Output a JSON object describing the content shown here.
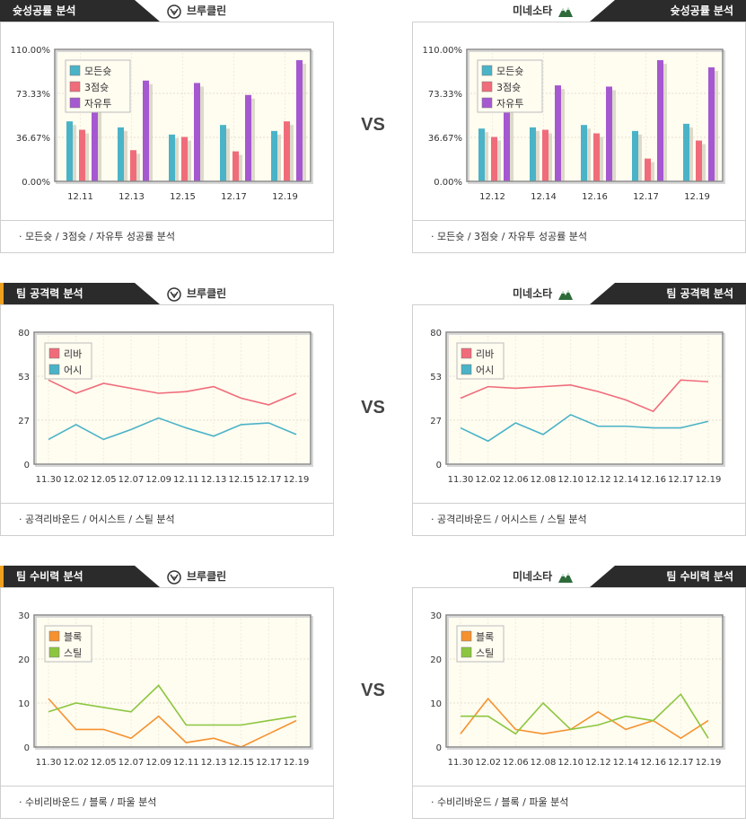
{
  "vs_label": "VS",
  "sections": [
    {
      "title": "슛성공률 분석",
      "left_team": "브루클린",
      "right_team": "미네소타",
      "left_caption": "·  모든슛 / 3점슛 / 자유투 성공률 분석",
      "right_caption": "·  모든슛 / 3점슛 / 자유투 성공률 분석"
    },
    {
      "title": "팀 공격력 분석",
      "left_team": "브루클린",
      "right_team": "미네소타",
      "left_caption": "· 공격리바운드 / 어시스트 / 스틸 분석",
      "right_caption": "·  공격리바운드 / 어시스트 / 스틸 분석"
    },
    {
      "title": "팀 수비력 분석",
      "left_team": "브루클린",
      "right_team": "미네소타",
      "left_caption": "· 수비리바운드 / 블록 / 파울 분석",
      "right_caption": "·  수비리바운드 / 블록 / 파울 분석"
    }
  ],
  "chart_data": [
    {
      "type": "bar",
      "team": "브루클린",
      "categories": [
        "12.11",
        "12.13",
        "12.15",
        "12.17",
        "12.19"
      ],
      "yticks": [
        "0.00%",
        "36.67%",
        "73.33%",
        "110.00%"
      ],
      "ylim": [
        0,
        110
      ],
      "legend_placement": "top-left",
      "series": [
        {
          "name": "모든슛",
          "color": "#4ab3c7",
          "values": [
            50,
            45,
            39,
            47,
            42
          ]
        },
        {
          "name": "3점슛",
          "color": "#f06c7a",
          "values": [
            43,
            26,
            37,
            25,
            50
          ]
        },
        {
          "name": "자유투",
          "color": "#a558d0",
          "values": [
            64,
            84,
            82,
            72,
            101
          ]
        }
      ]
    },
    {
      "type": "bar",
      "team": "미네소타",
      "categories": [
        "12.12",
        "12.14",
        "12.16",
        "12.17",
        "12.19"
      ],
      "yticks": [
        "0.00%",
        "36.67%",
        "73.33%",
        "110.00%"
      ],
      "ylim": [
        0,
        110
      ],
      "legend_placement": "top-left",
      "series": [
        {
          "name": "모든슛",
          "color": "#4ab3c7",
          "values": [
            44,
            45,
            47,
            42,
            48
          ]
        },
        {
          "name": "3점슛",
          "color": "#f06c7a",
          "values": [
            37,
            43,
            40,
            19,
            34
          ]
        },
        {
          "name": "자유투",
          "color": "#a558d0",
          "values": [
            64,
            80,
            79,
            101,
            95
          ]
        }
      ]
    },
    {
      "type": "line",
      "team": "브루클린",
      "categories": [
        "11.30",
        "12.02",
        "12.05",
        "12.07",
        "12.09",
        "12.11",
        "12.13",
        "12.15",
        "12.17",
        "12.19"
      ],
      "yticks": [
        "0",
        "27",
        "53",
        "80"
      ],
      "ylim": [
        0,
        80
      ],
      "legend_placement": "top-left",
      "series": [
        {
          "name": "리바",
          "color": "#f06c7a",
          "values": [
            51,
            43,
            49,
            46,
            43,
            44,
            47,
            40,
            36,
            43
          ]
        },
        {
          "name": "어시",
          "color": "#4ab3c7",
          "values": [
            15,
            24,
            15,
            21,
            28,
            22,
            17,
            24,
            25,
            18
          ]
        }
      ]
    },
    {
      "type": "line",
      "team": "미네소타",
      "categories": [
        "11.30",
        "12.02",
        "12.06",
        "12.08",
        "12.10",
        "12.12",
        "12.14",
        "12.16",
        "12.17",
        "12.19"
      ],
      "yticks": [
        "0",
        "27",
        "53",
        "80"
      ],
      "ylim": [
        0,
        80
      ],
      "legend_placement": "top-left",
      "series": [
        {
          "name": "리바",
          "color": "#f06c7a",
          "values": [
            40,
            47,
            46,
            47,
            48,
            44,
            39,
            32,
            51,
            50
          ]
        },
        {
          "name": "어시",
          "color": "#4ab3c7",
          "values": [
            22,
            14,
            25,
            18,
            30,
            23,
            23,
            22,
            22,
            26
          ]
        }
      ]
    },
    {
      "type": "line",
      "team": "브루클린",
      "categories": [
        "11.30",
        "12.02",
        "12.05",
        "12.07",
        "12.09",
        "12.11",
        "12.13",
        "12.15",
        "12.17",
        "12.19"
      ],
      "yticks": [
        "0",
        "10",
        "20",
        "30"
      ],
      "ylim": [
        0,
        30
      ],
      "legend_placement": "top-left",
      "series": [
        {
          "name": "블록",
          "color": "#f5922f",
          "values": [
            11,
            4,
            4,
            2,
            7,
            1,
            2,
            0,
            3,
            6
          ]
        },
        {
          "name": "스틸",
          "color": "#8cc63f",
          "values": [
            8,
            10,
            9,
            8,
            14,
            5,
            5,
            5,
            6,
            7
          ]
        }
      ]
    },
    {
      "type": "line",
      "team": "미네소타",
      "categories": [
        "11.30",
        "12.02",
        "12.06",
        "12.08",
        "12.10",
        "12.12",
        "12.14",
        "12.16",
        "12.17",
        "12.19"
      ],
      "yticks": [
        "0",
        "10",
        "20",
        "30"
      ],
      "ylim": [
        0,
        30
      ],
      "legend_placement": "top-left",
      "series": [
        {
          "name": "블록",
          "color": "#f5922f",
          "values": [
            3,
            11,
            4,
            3,
            4,
            8,
            4,
            6,
            2,
            6
          ]
        },
        {
          "name": "스틸",
          "color": "#8cc63f",
          "values": [
            7,
            7,
            3,
            10,
            4,
            5,
            7,
            6,
            12,
            2
          ]
        }
      ]
    }
  ]
}
